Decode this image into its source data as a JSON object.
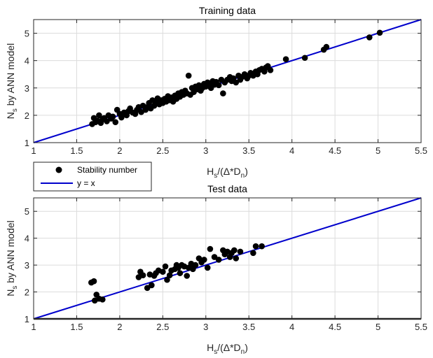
{
  "colors": {
    "points": "#000000",
    "line": "#0000cc",
    "grid": "#dcdcdc",
    "axis": "#262626"
  },
  "legend": {
    "entries": [
      {
        "label": "Stability number",
        "marker": "filled-circle"
      },
      {
        "label": "y = x",
        "marker": "line"
      }
    ]
  },
  "chart_data": [
    {
      "type": "scatter",
      "title": "Training data",
      "xlabel": {
        "main": "H",
        "sub1": "s",
        "mid": "/(Δ*D",
        "sub2": "n",
        "end": ")"
      },
      "ylabel": {
        "main": "N",
        "sub": "s",
        "rest": " by ANN model"
      },
      "xlim": [
        1,
        5.5
      ],
      "ylim": [
        1,
        5.5
      ],
      "xticks": [
        "1",
        "1.5",
        "2",
        "2.5",
        "3",
        "3.5",
        "4",
        "4.5",
        "5",
        "5.5"
      ],
      "yticks": [
        "1",
        "2",
        "3",
        "4",
        "5"
      ],
      "grid": true,
      "reference_line": {
        "x": [
          1,
          5.5
        ],
        "y": [
          1,
          5.5
        ]
      },
      "points": [
        [
          1.68,
          1.68
        ],
        [
          1.7,
          1.9
        ],
        [
          1.72,
          1.75
        ],
        [
          1.74,
          1.8
        ],
        [
          1.76,
          2.0
        ],
        [
          1.78,
          1.72
        ],
        [
          1.8,
          1.85
        ],
        [
          1.82,
          1.9
        ],
        [
          1.85,
          1.78
        ],
        [
          1.87,
          2.0
        ],
        [
          1.9,
          1.88
        ],
        [
          1.92,
          1.95
        ],
        [
          1.95,
          1.75
        ],
        [
          1.97,
          2.2
        ],
        [
          2.0,
          2.05
        ],
        [
          2.02,
          1.92
        ],
        [
          2.05,
          2.1
        ],
        [
          2.08,
          2.0
        ],
        [
          2.1,
          2.15
        ],
        [
          2.12,
          2.25
        ],
        [
          2.15,
          2.1
        ],
        [
          2.18,
          2.05
        ],
        [
          2.2,
          2.2
        ],
        [
          2.22,
          2.3
        ],
        [
          2.25,
          2.12
        ],
        [
          2.27,
          2.35
        ],
        [
          2.3,
          2.2
        ],
        [
          2.32,
          2.3
        ],
        [
          2.34,
          2.45
        ],
        [
          2.36,
          2.25
        ],
        [
          2.38,
          2.55
        ],
        [
          2.4,
          2.35
        ],
        [
          2.42,
          2.5
        ],
        [
          2.44,
          2.62
        ],
        [
          2.46,
          2.4
        ],
        [
          2.48,
          2.55
        ],
        [
          2.5,
          2.45
        ],
        [
          2.52,
          2.6
        ],
        [
          2.54,
          2.5
        ],
        [
          2.56,
          2.7
        ],
        [
          2.58,
          2.55
        ],
        [
          2.6,
          2.65
        ],
        [
          2.62,
          2.5
        ],
        [
          2.64,
          2.72
        ],
        [
          2.66,
          2.6
        ],
        [
          2.68,
          2.8
        ],
        [
          2.7,
          2.68
        ],
        [
          2.72,
          2.85
        ],
        [
          2.74,
          2.75
        ],
        [
          2.76,
          2.9
        ],
        [
          2.78,
          2.8
        ],
        [
          2.8,
          3.45
        ],
        [
          2.82,
          2.75
        ],
        [
          2.84,
          3.0
        ],
        [
          2.86,
          2.85
        ],
        [
          2.88,
          3.05
        ],
        [
          2.9,
          2.95
        ],
        [
          2.92,
          3.1
        ],
        [
          2.94,
          2.9
        ],
        [
          2.96,
          3.0
        ],
        [
          2.98,
          3.15
        ],
        [
          3.0,
          3.05
        ],
        [
          3.02,
          3.2
        ],
        [
          3.04,
          3.1
        ],
        [
          3.06,
          3.0
        ],
        [
          3.08,
          3.25
        ],
        [
          3.1,
          3.12
        ],
        [
          3.12,
          3.22
        ],
        [
          3.15,
          3.1
        ],
        [
          3.18,
          3.3
        ],
        [
          3.2,
          2.8
        ],
        [
          3.22,
          3.2
        ],
        [
          3.25,
          3.3
        ],
        [
          3.28,
          3.4
        ],
        [
          3.3,
          3.25
        ],
        [
          3.32,
          3.35
        ],
        [
          3.35,
          3.2
        ],
        [
          3.38,
          3.45
        ],
        [
          3.4,
          3.3
        ],
        [
          3.42,
          3.4
        ],
        [
          3.45,
          3.5
        ],
        [
          3.48,
          3.35
        ],
        [
          3.5,
          3.45
        ],
        [
          3.52,
          3.55
        ],
        [
          3.55,
          3.45
        ],
        [
          3.58,
          3.6
        ],
        [
          3.6,
          3.5
        ],
        [
          3.62,
          3.65
        ],
        [
          3.65,
          3.7
        ],
        [
          3.68,
          3.6
        ],
        [
          3.7,
          3.75
        ],
        [
          3.72,
          3.8
        ],
        [
          3.75,
          3.65
        ],
        [
          3.93,
          4.05
        ],
        [
          4.15,
          4.1
        ],
        [
          4.37,
          4.4
        ],
        [
          4.4,
          4.5
        ],
        [
          4.9,
          4.85
        ],
        [
          5.02,
          5.02
        ]
      ]
    },
    {
      "type": "scatter",
      "title": "Test data",
      "xlabel": {
        "main": "H",
        "sub1": "s",
        "mid": "/(Δ*D",
        "sub2": "n",
        "end": ")"
      },
      "ylabel": {
        "main": "N",
        "sub": "s",
        "rest": " by ANN model"
      },
      "xlim": [
        1,
        5.5
      ],
      "ylim": [
        1,
        5.5
      ],
      "xticks": [
        "1",
        "1.5",
        "2",
        "2.5",
        "3",
        "3.5",
        "4",
        "4.5",
        "5",
        "5.5"
      ],
      "yticks": [
        "1",
        "2",
        "3",
        "4",
        "5"
      ],
      "grid": true,
      "reference_line": {
        "x": [
          1,
          5.5
        ],
        "y": [
          1,
          5.5
        ]
      },
      "points": [
        [
          1.67,
          2.35
        ],
        [
          1.7,
          2.4
        ],
        [
          1.71,
          1.68
        ],
        [
          1.73,
          1.9
        ],
        [
          1.76,
          1.75
        ],
        [
          1.8,
          1.72
        ],
        [
          2.22,
          2.55
        ],
        [
          2.24,
          2.75
        ],
        [
          2.27,
          2.62
        ],
        [
          2.32,
          2.15
        ],
        [
          2.35,
          2.65
        ],
        [
          2.37,
          2.25
        ],
        [
          2.4,
          2.6
        ],
        [
          2.42,
          2.7
        ],
        [
          2.45,
          2.8
        ],
        [
          2.5,
          2.75
        ],
        [
          2.53,
          2.95
        ],
        [
          2.55,
          2.45
        ],
        [
          2.58,
          2.62
        ],
        [
          2.6,
          2.8
        ],
        [
          2.64,
          2.85
        ],
        [
          2.66,
          3.0
        ],
        [
          2.68,
          2.9
        ],
        [
          2.7,
          2.7
        ],
        [
          2.72,
          3.0
        ],
        [
          2.75,
          2.95
        ],
        [
          2.78,
          2.6
        ],
        [
          2.8,
          2.9
        ],
        [
          2.83,
          3.05
        ],
        [
          2.85,
          2.85
        ],
        [
          2.88,
          3.0
        ],
        [
          2.92,
          3.25
        ],
        [
          2.95,
          3.1
        ],
        [
          2.98,
          3.2
        ],
        [
          3.02,
          2.9
        ],
        [
          3.05,
          3.6
        ],
        [
          3.1,
          3.3
        ],
        [
          3.15,
          3.2
        ],
        [
          3.2,
          3.55
        ],
        [
          3.22,
          3.4
        ],
        [
          3.25,
          3.5
        ],
        [
          3.28,
          3.3
        ],
        [
          3.3,
          3.45
        ],
        [
          3.33,
          3.55
        ],
        [
          3.35,
          3.25
        ],
        [
          3.4,
          3.5
        ],
        [
          3.55,
          3.45
        ],
        [
          3.58,
          3.7
        ],
        [
          3.65,
          3.7
        ]
      ]
    }
  ]
}
